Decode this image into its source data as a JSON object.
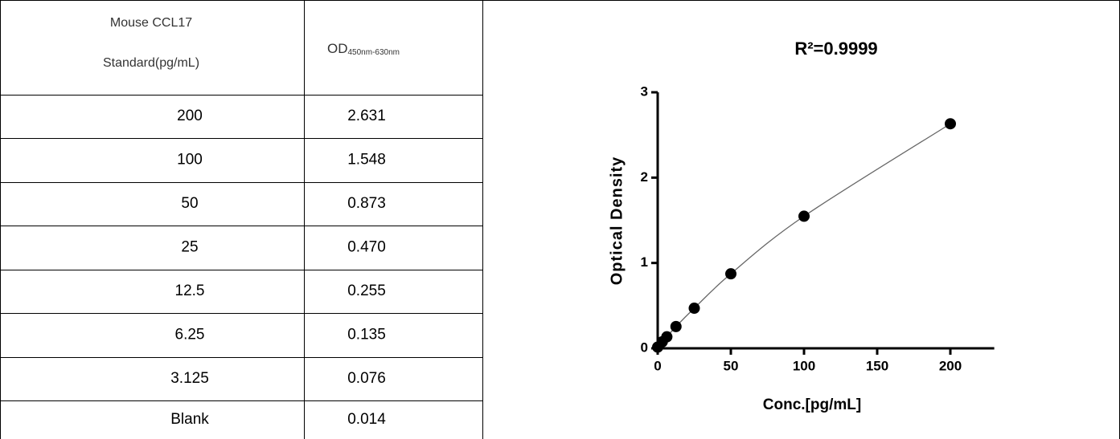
{
  "table": {
    "header": {
      "standard": [
        "Mouse CCL17",
        "Standard(pg/mL)"
      ],
      "od": "OD",
      "od_subscript": "450nm-630nm"
    },
    "rows": [
      [
        "200",
        "2.631"
      ],
      [
        "100",
        "1.548"
      ],
      [
        "50",
        "0.873"
      ],
      [
        "25",
        "0.470"
      ],
      [
        "12.5",
        "0.255"
      ],
      [
        "6.25",
        "0.135"
      ],
      [
        "3.125",
        "0.076"
      ],
      [
        "Blank",
        "0.014"
      ]
    ]
  },
  "chart_data": {
    "type": "scatter",
    "title": "R²=0.9999",
    "x_label": "Conc.[pg/mL]",
    "y_label": "Optical Density",
    "x": [
      0,
      3.125,
      6.25,
      12.5,
      25,
      50,
      100,
      200
    ],
    "values": [
      0.014,
      0.076,
      0.135,
      0.255,
      0.47,
      0.873,
      1.548,
      2.631
    ],
    "color": "#000000",
    "line_color": "#666666",
    "xlim": [
      0,
      230
    ],
    "ylim": [
      0,
      3
    ],
    "xticks": [
      0,
      50,
      100,
      150,
      200
    ],
    "yticks": [
      0,
      1,
      2,
      3
    ]
  }
}
